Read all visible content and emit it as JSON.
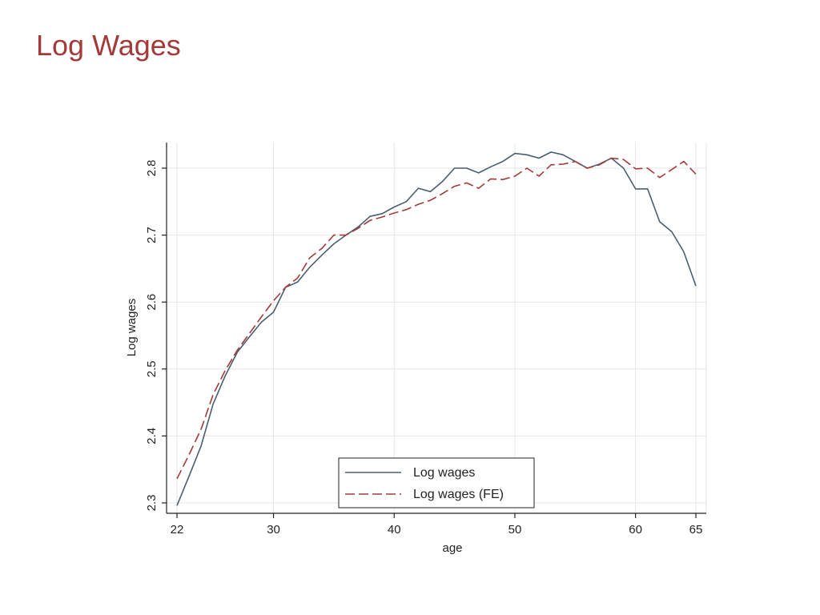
{
  "slide": {
    "title": "Log Wages"
  },
  "chart_data": {
    "type": "line",
    "title": "",
    "xlabel": "age",
    "ylabel": "Log wages",
    "xlim": [
      22,
      65
    ],
    "ylim": [
      2.3,
      2.8
    ],
    "x_ticks": [
      22,
      30,
      40,
      50,
      60,
      65
    ],
    "y_ticks": [
      2.3,
      2.4,
      2.5,
      2.6,
      2.7,
      2.8
    ],
    "grid": true,
    "legend_position": "bottom-center",
    "x": [
      22,
      23,
      24,
      25,
      26,
      27,
      28,
      29,
      30,
      31,
      32,
      33,
      34,
      35,
      36,
      37,
      38,
      39,
      40,
      41,
      42,
      43,
      44,
      45,
      46,
      47,
      48,
      49,
      50,
      51,
      52,
      53,
      54,
      55,
      56,
      57,
      58,
      59,
      60,
      61,
      62,
      63,
      64,
      65
    ],
    "series": [
      {
        "name": "Log wages",
        "color": "#4a5e6e",
        "dash": "solid",
        "values": [
          2.296,
          2.34,
          2.385,
          2.448,
          2.49,
          2.525,
          2.548,
          2.57,
          2.585,
          2.622,
          2.63,
          2.652,
          2.67,
          2.687,
          2.7,
          2.712,
          2.728,
          2.732,
          2.742,
          2.75,
          2.77,
          2.765,
          2.78,
          2.8,
          2.8,
          2.793,
          2.802,
          2.81,
          2.822,
          2.82,
          2.815,
          2.824,
          2.82,
          2.81,
          2.8,
          2.806,
          2.815,
          2.8,
          2.769,
          2.769,
          2.72,
          2.705,
          2.675,
          2.624
        ]
      },
      {
        "name": "Log wages (FE)",
        "color": "#a33a3a",
        "dash": "dashed",
        "values": [
          2.336,
          2.372,
          2.41,
          2.462,
          2.498,
          2.528,
          2.553,
          2.578,
          2.602,
          2.622,
          2.636,
          2.666,
          2.68,
          2.7,
          2.7,
          2.71,
          2.722,
          2.727,
          2.733,
          2.738,
          2.746,
          2.752,
          2.762,
          2.773,
          2.778,
          2.77,
          2.784,
          2.783,
          2.788,
          2.8,
          2.788,
          2.805,
          2.806,
          2.81,
          2.8,
          2.805,
          2.815,
          2.813,
          2.799,
          2.8,
          2.786,
          2.798,
          2.81,
          2.791
        ]
      }
    ]
  }
}
